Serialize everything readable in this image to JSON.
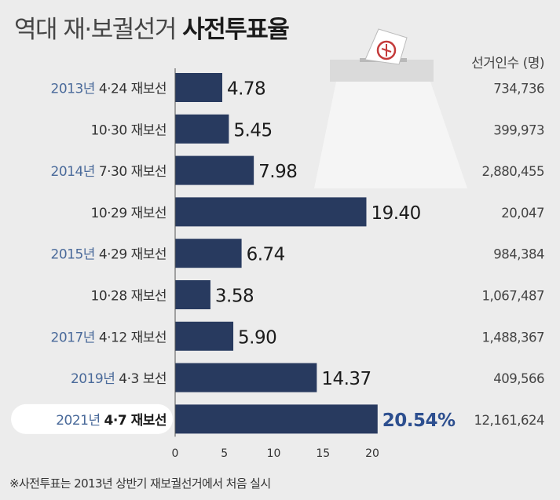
{
  "title": {
    "part1": "역대 재·보궐선거",
    "part2": "사전투표율"
  },
  "count_header": "선거인수 (명)",
  "footnote": "※사전투표는 2013년 상반기 재보궐선거에서 처음 실시",
  "colors": {
    "bar": "#283a5f",
    "year": "#4a6a9a",
    "highlight_value": "#2d4f8f"
  },
  "chart_data": {
    "type": "bar",
    "orientation": "horizontal",
    "xlim": [
      0,
      22
    ],
    "x_ticks": [
      "0",
      "5",
      "10",
      "15",
      "20"
    ],
    "rows": [
      {
        "year": "2013년",
        "label": "4·24 재보선",
        "value": 4.78,
        "value_label": "4.78",
        "count": "734,736"
      },
      {
        "year": "",
        "label": "10·30 재보선",
        "value": 5.45,
        "value_label": "5.45",
        "count": "399,973"
      },
      {
        "year": "2014년",
        "label": "7·30 재보선",
        "value": 7.98,
        "value_label": "7.98",
        "count": "2,880,455"
      },
      {
        "year": "",
        "label": "10·29 재보선",
        "value": 19.4,
        "value_label": "19.40",
        "count": "20,047"
      },
      {
        "year": "2015년",
        "label": "4·29 재보선",
        "value": 6.74,
        "value_label": "6.74",
        "count": "984,384"
      },
      {
        "year": "",
        "label": "10·28 재보선",
        "value": 3.58,
        "value_label": "3.58",
        "count": "1,067,487"
      },
      {
        "year": "2017년",
        "label": "4·12 재보선",
        "value": 5.9,
        "value_label": "5.90",
        "count": "1,488,367"
      },
      {
        "year": "2019년",
        "label": "4·3 보선",
        "value": 14.37,
        "value_label": "14.37",
        "count": "409,566"
      },
      {
        "year": "2021년",
        "label": "4·7 재보선",
        "value": 20.54,
        "value_label": "20.54%",
        "count": "12,161,624",
        "highlight": true
      }
    ]
  }
}
